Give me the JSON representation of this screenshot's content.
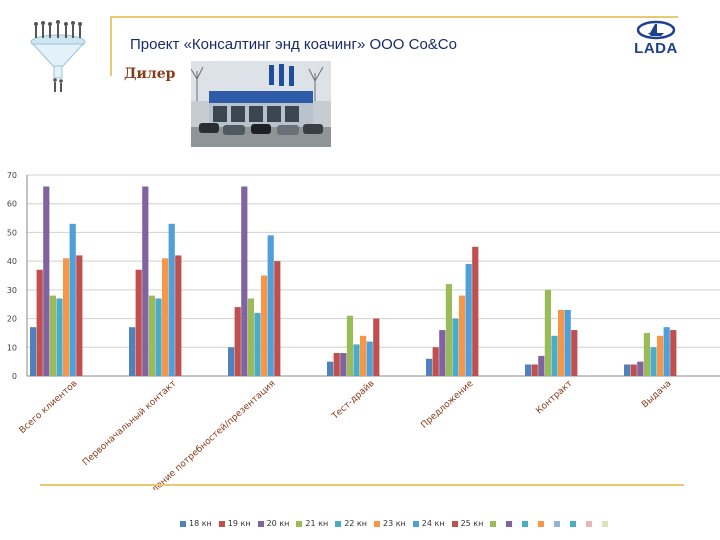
{
  "header": {
    "title": "Проект «Консалтинг энд коачинг» ООО Со&Со",
    "subtitle": "Дилер",
    "brand": "LADA"
  },
  "colors": {
    "accent_rule": "#e8c870",
    "title": "#1a2a6c",
    "subtitle": "#8a3a1a",
    "brand": "#1f3f8f"
  },
  "icons": {
    "people_funnel": "people-funnel-logo-icon",
    "lada_boat": "lada-boat-logo-icon",
    "photo": "dealership-building-photo"
  },
  "chart_data": {
    "type": "bar",
    "categories": [
      "Всего клиентов",
      "Первоначальный контакт",
      "Выявление потребностей/презентация",
      "Тест-драйв",
      "Предложение",
      "Контракт",
      "Выдача"
    ],
    "series": [
      {
        "name": "18 кн",
        "color": "#4f81bd",
        "values": [
          17,
          17,
          10,
          5,
          6,
          4,
          4
        ]
      },
      {
        "name": "19 кн",
        "color": "#c0504d",
        "values": [
          37,
          37,
          24,
          8,
          10,
          4,
          4
        ]
      },
      {
        "name": "20 кн",
        "color": "#8064a2",
        "values": [
          66,
          66,
          66,
          8,
          16,
          7,
          5
        ]
      },
      {
        "name": "21 кн",
        "color": "#9bbb59",
        "values": [
          28,
          28,
          27,
          21,
          32,
          30,
          15
        ]
      },
      {
        "name": "22 кн",
        "color": "#4bacc6",
        "values": [
          27,
          27,
          22,
          11,
          20,
          14,
          10
        ]
      },
      {
        "name": "23 кн",
        "color": "#f79646",
        "values": [
          41,
          41,
          35,
          14,
          28,
          23,
          14
        ]
      },
      {
        "name": "24 кн",
        "color": "#4f9fd8",
        "values": [
          53,
          53,
          49,
          12,
          39,
          23,
          17
        ]
      },
      {
        "name": "25 кн",
        "color": "#c0504d",
        "values": [
          42,
          42,
          40,
          20,
          45,
          16,
          16
        ]
      }
    ],
    "extra_legend_colors": [
      "#9bbb59",
      "#8064a2",
      "#4bacc6",
      "#f79646",
      "#95b3d7",
      "#4bacc6",
      "#e6b9b8",
      "#d7e4bd"
    ],
    "ylim": [
      0,
      70
    ],
    "yticks": [
      0,
      10,
      20,
      30,
      40,
      50,
      60,
      70
    ],
    "grid": true,
    "legend_position": "bottom"
  }
}
